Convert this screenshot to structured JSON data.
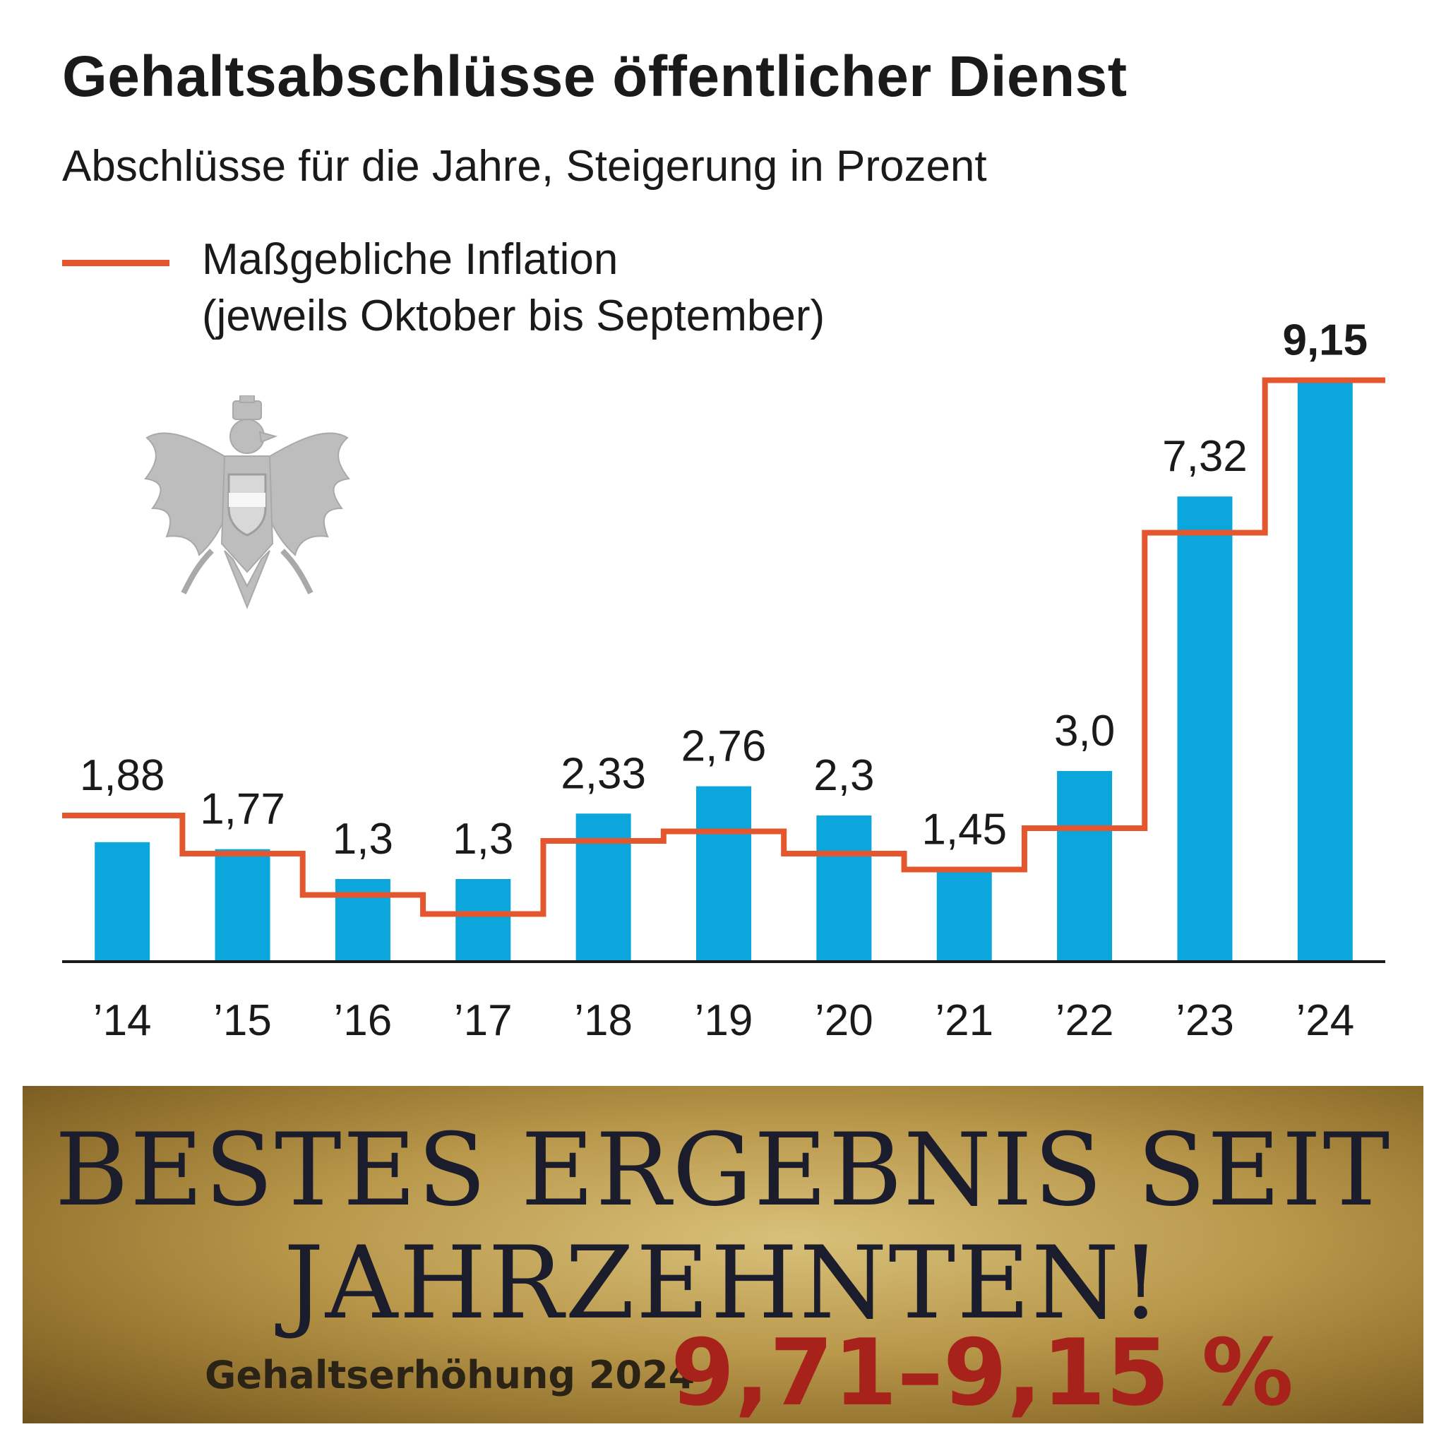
{
  "chart_data": {
    "type": "bar",
    "title": "Gehaltsabschlüsse öffentlicher Dienst",
    "subtitle": "Abschlüsse für die Jahre, Steigerung in Prozent",
    "legend": {
      "line_label_1": "Maßgebliche Inflation",
      "line_label_2": "(jeweils Oktober bis September)",
      "placement": "top-left"
    },
    "categories": [
      "’14",
      "’15",
      "’16",
      "’17",
      "’18",
      "’19",
      "’20",
      "’21",
      "’22",
      "’23",
      "’24"
    ],
    "series": [
      {
        "kind": "bar",
        "values": [
          1.88,
          1.77,
          1.3,
          1.3,
          2.33,
          2.76,
          2.3,
          1.45,
          3.0,
          7.32,
          9.15
        ],
        "labels": [
          "1,88",
          "1,77",
          "1,3",
          "1,3",
          "2,33",
          "2,76",
          "2,3",
          "1,45",
          "3,0",
          "7,32",
          "9,15"
        ],
        "color": "#0aa6dc"
      },
      {
        "name": "Maßgebliche Inflation",
        "kind": "step-line",
        "values": [
          2.3,
          1.7,
          1.05,
          0.75,
          1.9,
          2.05,
          1.7,
          1.45,
          2.1,
          6.75,
          9.15
        ],
        "color": "#e4572e"
      }
    ],
    "ylim": [
      0,
      10
    ],
    "grid": false,
    "highlight_last_label": true
  },
  "banner": {
    "headline": "BESTES ERGEBNIS SEIT JAHRZEHNTEN!",
    "label": "Gehaltserhöhung 2024",
    "value": "9,71–9,15 %"
  },
  "colors": {
    "bar": "#0aa6dc",
    "inflation": "#e4572e",
    "banner_value": "#a8221c"
  },
  "icons": {
    "emblem": "austrian-eagle-coat-of-arms"
  }
}
